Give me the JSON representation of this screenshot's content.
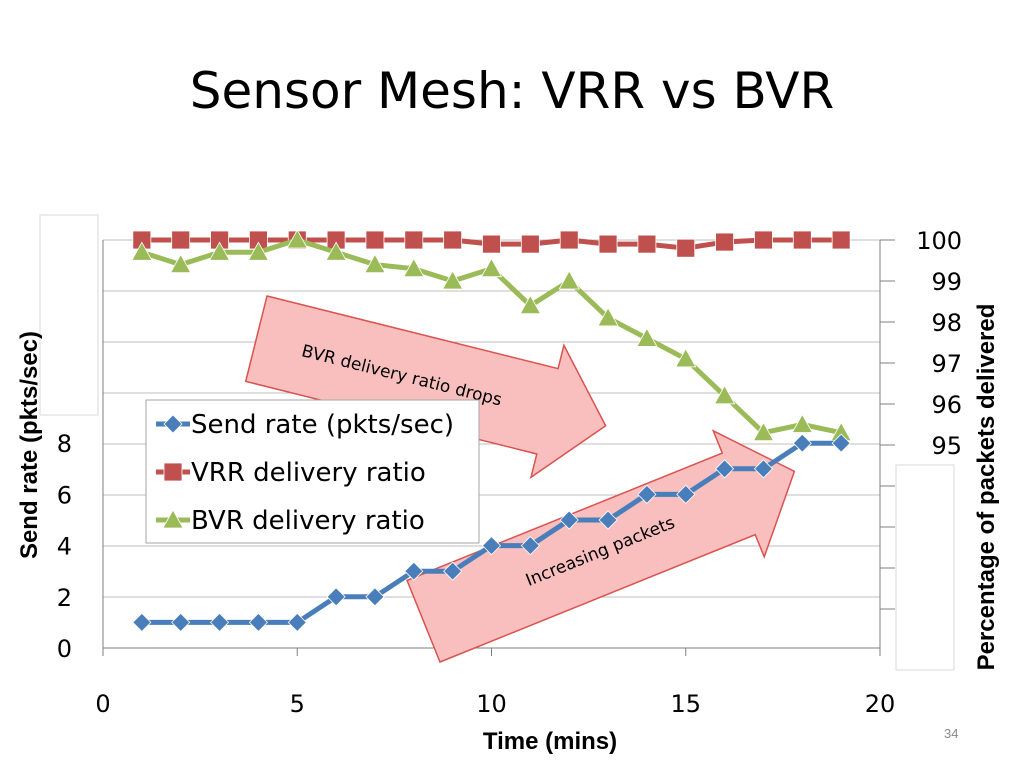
{
  "slide": {
    "title": "Sensor Mesh: VRR vs BVR",
    "slide_number": "34"
  },
  "colors": {
    "send_rate": "#4a7ebb",
    "vrr": "#c0504d",
    "bvr": "#9bbb59",
    "arrow_fill": "#f9bfbf",
    "arrow_stroke": "#d9534f",
    "grid": "#bfbfbf"
  },
  "chart_data": {
    "type": "line",
    "xlabel": "Time (mins)",
    "ylabel_left": "Send rate (pkts/sec)",
    "ylabel_right": "Percentage of packets delivered",
    "xlim": [
      0,
      20
    ],
    "x_ticks": [
      "0",
      "5",
      "10",
      "15",
      "20"
    ],
    "y_left_ticks": [
      "0",
      "2",
      "4",
      "6",
      "8"
    ],
    "y_right_ticks": [
      "95",
      "96",
      "97",
      "98",
      "99",
      "100"
    ],
    "grid": true,
    "legend_position": "center-left",
    "x": [
      1,
      2,
      3,
      4,
      5,
      6,
      7,
      8,
      9,
      10,
      11,
      12,
      13,
      14,
      15,
      16,
      17,
      18,
      19
    ],
    "series": [
      {
        "name": "Send rate (pkts/sec)",
        "axis": "left",
        "marker": "diamond",
        "values": [
          1,
          1,
          1,
          1,
          1,
          2,
          2,
          3,
          3,
          4,
          4,
          5,
          5,
          6,
          6,
          7,
          7,
          8,
          8
        ]
      },
      {
        "name": "VRR delivery ratio",
        "axis": "right",
        "marker": "square",
        "values": [
          100,
          100,
          100,
          100,
          100,
          100,
          100,
          100,
          100,
          99.9,
          99.9,
          100,
          99.9,
          99.9,
          99.8,
          99.95,
          100,
          100,
          100
        ]
      },
      {
        "name": "BVR delivery ratio",
        "axis": "right",
        "marker": "triangle",
        "values": [
          99.7,
          99.4,
          99.7,
          99.7,
          100,
          99.7,
          99.4,
          99.3,
          99,
          99.3,
          98.4,
          99,
          98.1,
          97.6,
          97.1,
          96.2,
          95.3,
          95.5,
          95.3
        ]
      }
    ],
    "annotations": [
      "BVR delivery ratio drops",
      "Increasing packets"
    ]
  }
}
